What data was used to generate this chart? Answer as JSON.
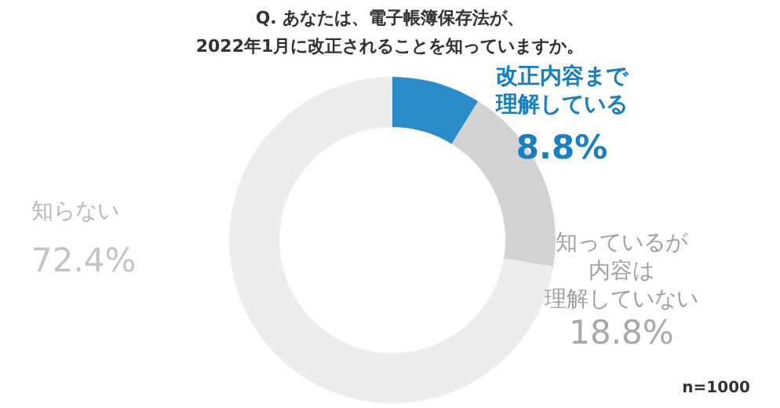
{
  "chart_data": {
    "type": "donut",
    "title": "Q. あなたは、電子帳簿保存法が、\n2022年1月に改正されることを知っていますか。",
    "categories": [
      "改正内容まで理解している",
      "知っているが内容は理解していない",
      "知らない"
    ],
    "values": [
      8.8,
      18.8,
      72.4
    ],
    "colors": [
      "#2a8ccb",
      "#d3d3d3",
      "#ededed"
    ],
    "value_labels": [
      "8.8%",
      "18.8%",
      "72.4%"
    ],
    "annotations": [
      "n=1000"
    ]
  }
}
